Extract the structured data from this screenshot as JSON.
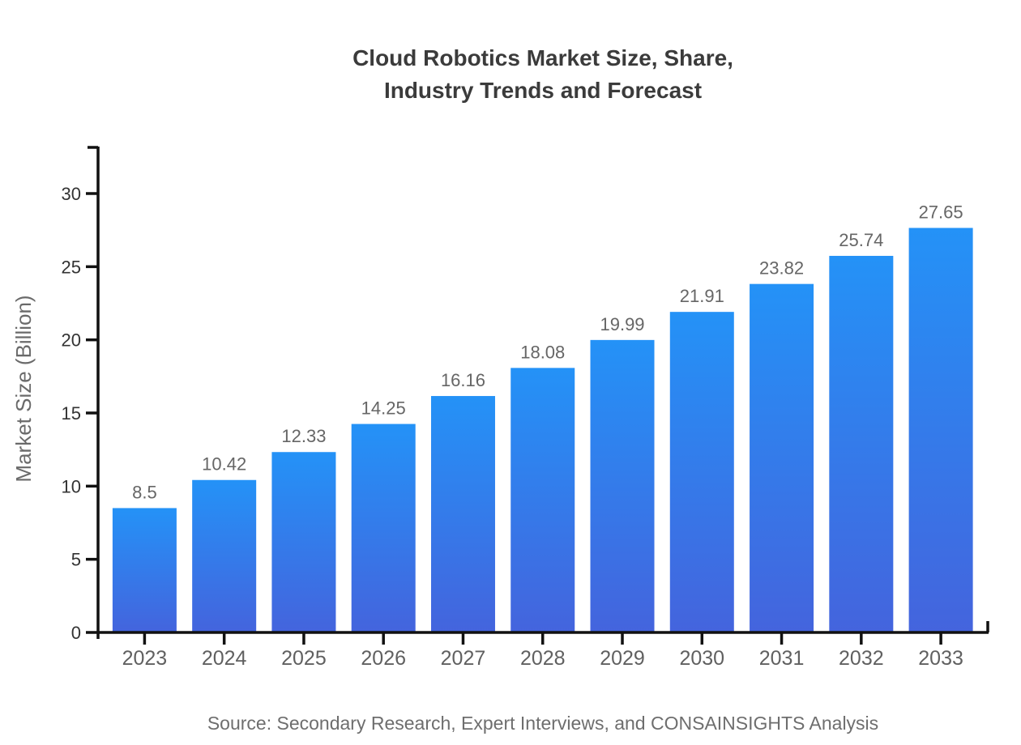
{
  "page": {
    "background": "#ffffff"
  },
  "chart_data": {
    "type": "bar",
    "title_lines": [
      "Cloud Robotics Market Size, Share,",
      "Industry Trends and Forecast"
    ],
    "categories": [
      "2023",
      "2024",
      "2025",
      "2026",
      "2027",
      "2028",
      "2029",
      "2030",
      "2031",
      "2032",
      "2033"
    ],
    "values": [
      8.5,
      10.42,
      12.33,
      14.25,
      16.16,
      18.08,
      19.99,
      21.91,
      23.82,
      25.74,
      27.65
    ],
    "xlabel": "",
    "ylabel": "Market Size (Billion)",
    "yticks": [
      0,
      5,
      10,
      15,
      20,
      25,
      30
    ],
    "ylim": [
      0,
      33.2
    ],
    "grid": false,
    "legend": false,
    "data_labels_shown": true,
    "source": "Source: Secondary Research, Expert Interviews, and CONSAINSIGHTS Analysis",
    "colors": {
      "bar_gradient_top": "#2492F7",
      "bar_gradient_bottom": "#4464DD",
      "axis": "#111111",
      "title": "#3b3b3b",
      "ytick_label": "#333333",
      "xtick_label": "#606060",
      "value_label": "#666666",
      "ylabel": "#6a6a6a",
      "source": "#6e6e6e"
    }
  }
}
